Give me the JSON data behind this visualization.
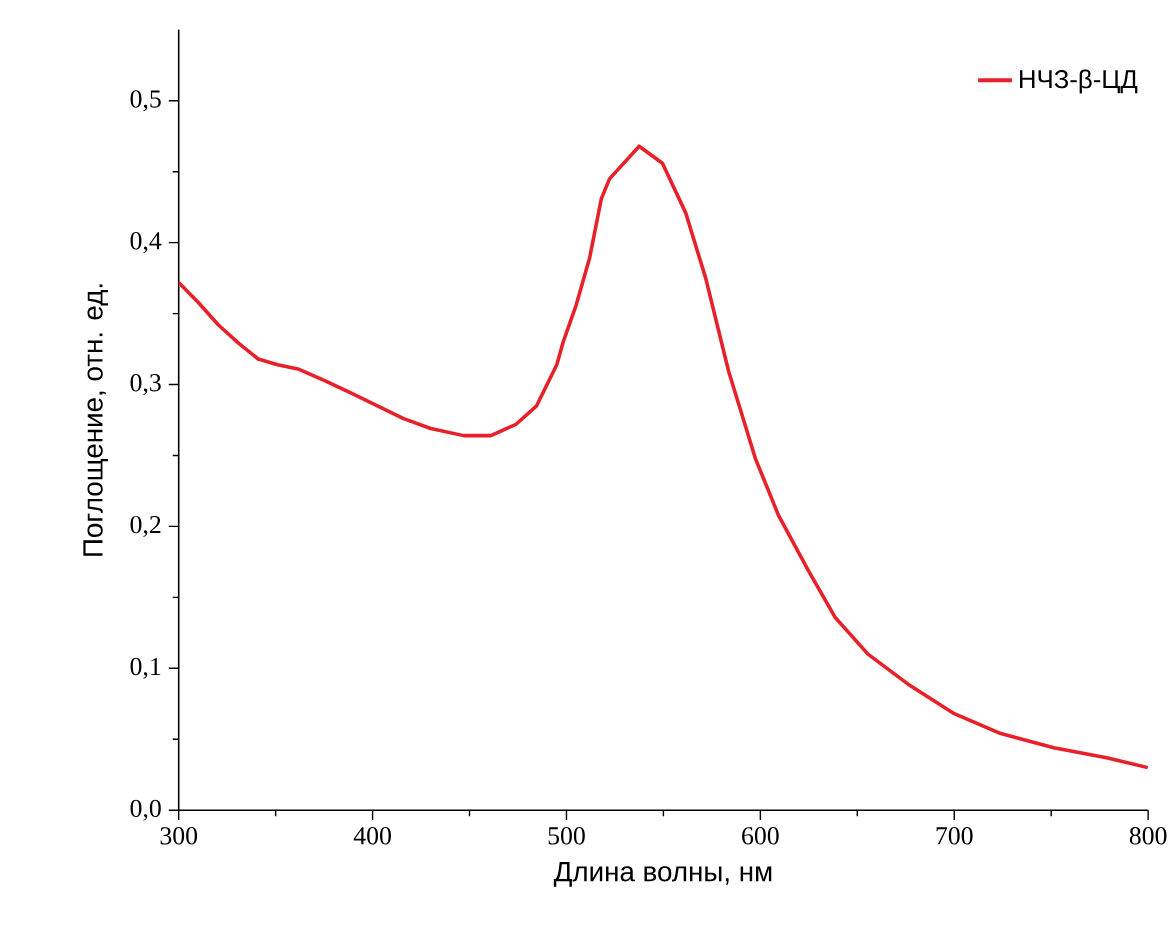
{
  "chart_data": {
    "type": "line",
    "xlabel": "Длина волны, нм",
    "ylabel": "Поглощение, отн. ед.",
    "xlim": [
      300,
      800
    ],
    "ylim": [
      0,
      0.55
    ],
    "xticks": [
      300,
      400,
      500,
      600,
      700,
      800
    ],
    "yticks": [
      {
        "value": 0,
        "label": "0,0"
      },
      {
        "value": 0.1,
        "label": "0,1"
      },
      {
        "value": 0.2,
        "label": "0,2"
      },
      {
        "value": 0.3,
        "label": "0,3"
      },
      {
        "value": 0.4,
        "label": "0,4"
      },
      {
        "value": 0.5,
        "label": "0,5"
      }
    ],
    "legend": "top right",
    "series": [
      {
        "name": "НЧЗ-β-ЦД",
        "color": "#e8202a",
        "x": [
          300,
          310,
          320.5,
          331,
          341,
          351,
          361.5,
          375,
          389,
          402.5,
          416,
          430,
          447,
          461,
          474,
          484.6,
          495,
          498.3,
          505,
          511.9,
          518,
          522.2,
          537.5,
          549.5,
          561.5,
          571.8,
          583.7,
          597.4,
          609.3,
          624.7,
          638.5,
          655.5,
          676,
          700,
          724,
          751.3,
          778.6,
          799.8
        ],
        "values": [
          0.372,
          0.358,
          0.342,
          0.329,
          0.318,
          0.314,
          0.311,
          0.303,
          0.294,
          0.285,
          0.276,
          0.269,
          0.264,
          0.264,
          0.272,
          0.285,
          0.314,
          0.33,
          0.356,
          0.389,
          0.431,
          0.445,
          0.468,
          0.456,
          0.421,
          0.375,
          0.309,
          0.248,
          0.208,
          0.169,
          0.136,
          0.11,
          0.089,
          0.068,
          0.054,
          0.044,
          0.037,
          0.03
        ]
      }
    ]
  }
}
